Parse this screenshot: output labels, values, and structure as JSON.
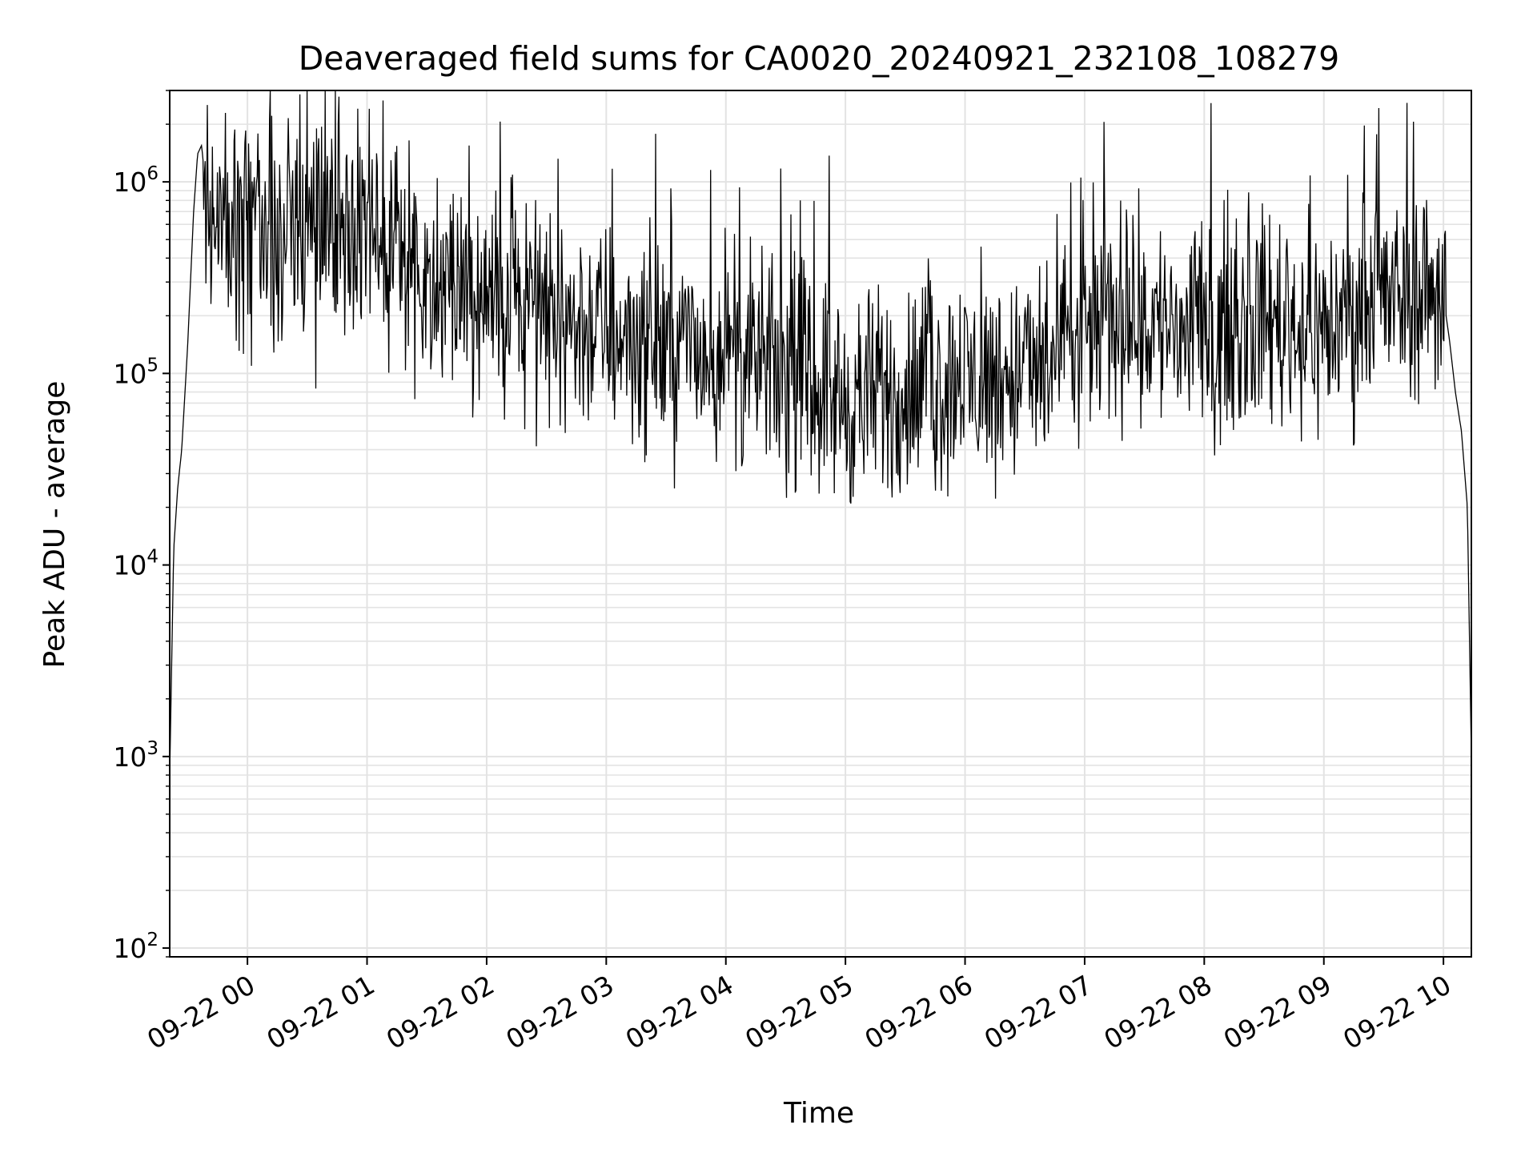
{
  "chart_data": {
    "type": "line",
    "title": "Deaveraged field sums for CA0020_20240921_232108_108279",
    "xlabel": "Time",
    "ylabel": "Peak ADU - average",
    "yscale": "log",
    "ylim": [
      90,
      3000000
    ],
    "xlim": [
      "2024-09-21 23:21",
      "2024-09-22 10:14"
    ],
    "grid": true,
    "line_color": "#000000",
    "x_ticks": [
      {
        "label": "09-22 00",
        "t": "2024-09-22 00:00"
      },
      {
        "label": "09-22 01",
        "t": "2024-09-22 01:00"
      },
      {
        "label": "09-22 02",
        "t": "2024-09-22 02:00"
      },
      {
        "label": "09-22 03",
        "t": "2024-09-22 03:00"
      },
      {
        "label": "09-22 04",
        "t": "2024-09-22 04:00"
      },
      {
        "label": "09-22 05",
        "t": "2024-09-22 05:00"
      },
      {
        "label": "09-22 06",
        "t": "2024-09-22 06:00"
      },
      {
        "label": "09-22 07",
        "t": "2024-09-22 07:00"
      },
      {
        "label": "09-22 08",
        "t": "2024-09-22 08:00"
      },
      {
        "label": "09-22 09",
        "t": "2024-09-22 09:00"
      },
      {
        "label": "09-22 10",
        "t": "2024-09-22 10:00"
      }
    ],
    "y_ticks": [
      {
        "base": "10",
        "exp": "2",
        "value": 100
      },
      {
        "base": "10",
        "exp": "3",
        "value": 1000
      },
      {
        "base": "10",
        "exp": "4",
        "value": 10000
      },
      {
        "base": "10",
        "exp": "5",
        "value": 100000
      },
      {
        "base": "10",
        "exp": "6",
        "value": 1000000
      }
    ],
    "series": [
      {
        "x": [
          "2024-09-21 23:21",
          "2024-09-21 23:23",
          "2024-09-21 23:25",
          "2024-09-21 23:27",
          "2024-09-21 23:30",
          "2024-09-21 23:33",
          "2024-09-21 23:35",
          "2024-09-21 23:37",
          "2024-09-21 23:38",
          "2024-09-21 23:40",
          "2024-09-21 23:45",
          "2024-09-21 23:50",
          "2024-09-21 23:55",
          "2024-09-22 00:00",
          "2024-09-22 00:10",
          "2024-09-22 00:20",
          "2024-09-22 00:30",
          "2024-09-22 00:45",
          "2024-09-22 01:00",
          "2024-09-22 01:15",
          "2024-09-22 01:30",
          "2024-09-22 01:45",
          "2024-09-22 02:00",
          "2024-09-22 02:15",
          "2024-09-22 02:30",
          "2024-09-22 02:45",
          "2024-09-22 03:00",
          "2024-09-22 03:15",
          "2024-09-22 03:30",
          "2024-09-22 03:45",
          "2024-09-22 04:00",
          "2024-09-22 04:15",
          "2024-09-22 04:30",
          "2024-09-22 04:45",
          "2024-09-22 05:00",
          "2024-09-22 05:15",
          "2024-09-22 05:30",
          "2024-09-22 05:45",
          "2024-09-22 06:00",
          "2024-09-22 06:15",
          "2024-09-22 06:30",
          "2024-09-22 06:45",
          "2024-09-22 07:00",
          "2024-09-22 07:15",
          "2024-09-22 07:30",
          "2024-09-22 07:45",
          "2024-09-22 08:00",
          "2024-09-22 08:15",
          "2024-09-22 08:30",
          "2024-09-22 08:45",
          "2024-09-22 09:00",
          "2024-09-22 09:15",
          "2024-09-22 09:30",
          "2024-09-22 09:45",
          "2024-09-22 09:55",
          "2024-09-22 10:00",
          "2024-09-22 10:03",
          "2024-09-22 10:06",
          "2024-09-22 10:09",
          "2024-09-22 10:12",
          "2024-09-22 10:14"
        ],
        "values": [
          800,
          12000,
          25000,
          40000,
          140000,
          700000,
          1400000,
          1550000,
          1200000,
          600000,
          650000,
          550000,
          500000,
          600000,
          650000,
          550000,
          450000,
          600000,
          500000,
          380000,
          320000,
          280000,
          250000,
          220000,
          200000,
          180000,
          170000,
          150000,
          140000,
          130000,
          120000,
          110000,
          100000,
          90000,
          70000,
          75000,
          80000,
          85000,
          90000,
          95000,
          100000,
          110000,
          160000,
          200000,
          190000,
          170000,
          150000,
          180000,
          200000,
          180000,
          170000,
          200000,
          230000,
          260000,
          280000,
          250000,
          150000,
          80000,
          50000,
          20000,
          1000
        ]
      }
    ]
  }
}
